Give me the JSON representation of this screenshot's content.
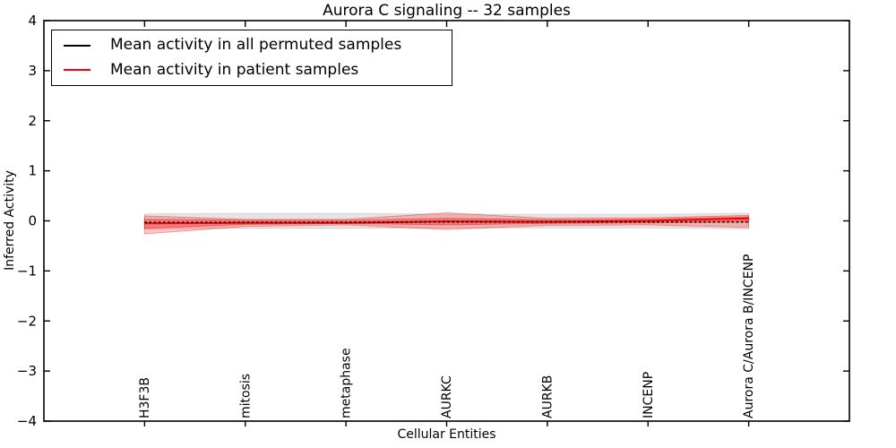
{
  "title": "Aurora C signaling -- 32 samples",
  "axes": {
    "xlabel": "Cellular Entities",
    "ylabel": "Inferred Activity"
  },
  "legend": {
    "items": [
      {
        "label": "Mean activity in all permuted samples",
        "color": "#000000"
      },
      {
        "label": "Mean activity in patient samples",
        "color": "#ff0000"
      }
    ]
  },
  "chart_data": {
    "type": "line",
    "title": "Aurora C signaling -- 32 samples",
    "xlabel": "Cellular Entities",
    "ylabel": "Inferred Activity",
    "ylim": [
      -4,
      4
    ],
    "ytick_values": [
      -4,
      -3,
      -2,
      -1,
      0,
      1,
      2,
      3,
      4
    ],
    "ytick_labels": [
      "−4",
      "−3",
      "−2",
      "−1",
      "0",
      "1",
      "2",
      "3",
      "4"
    ],
    "grid": false,
    "legend_position": "upper left",
    "categories": [
      "H3F3B",
      "mitosis",
      "metaphase",
      "AURKC",
      "AURKB",
      "INCENP",
      "Aurora C/Aurora B/INCENP"
    ],
    "series": [
      {
        "name": "Mean activity in patient samples",
        "color": "#ff0000",
        "line_style": "solid",
        "values": [
          -0.05,
          -0.04,
          -0.04,
          -0.01,
          -0.02,
          0.0,
          0.05
        ]
      },
      {
        "name": "Mean activity in all permuted samples",
        "color": "#000000",
        "line_style": "dashed",
        "values": [
          -0.03,
          -0.03,
          -0.03,
          -0.02,
          -0.02,
          -0.02,
          -0.02
        ]
      }
    ],
    "bands": [
      {
        "name": "permuted-samples-std-band",
        "color": "#bfbfbf",
        "opacity": 0.4,
        "upper": [
          0.14,
          0.15,
          0.15,
          0.13,
          0.13,
          0.13,
          0.15
        ],
        "lower": [
          -0.16,
          -0.15,
          -0.15,
          -0.14,
          -0.14,
          -0.14,
          -0.16
        ]
      },
      {
        "name": "patient-samples-std-outer-band",
        "color": "#ff0000",
        "opacity": 0.22,
        "upper": [
          0.1,
          0.03,
          0.03,
          0.16,
          0.05,
          0.06,
          0.11
        ],
        "lower": [
          -0.26,
          -0.11,
          -0.08,
          -0.17,
          -0.09,
          -0.08,
          -0.13
        ]
      },
      {
        "name": "patient-samples-std-inner-band",
        "color": "#ff0000",
        "opacity": 0.3,
        "upper": [
          0.03,
          0.01,
          0.01,
          0.05,
          0.02,
          0.03,
          0.08
        ],
        "lower": [
          -0.15,
          -0.07,
          -0.05,
          -0.08,
          -0.05,
          -0.04,
          -0.02
        ]
      }
    ]
  }
}
